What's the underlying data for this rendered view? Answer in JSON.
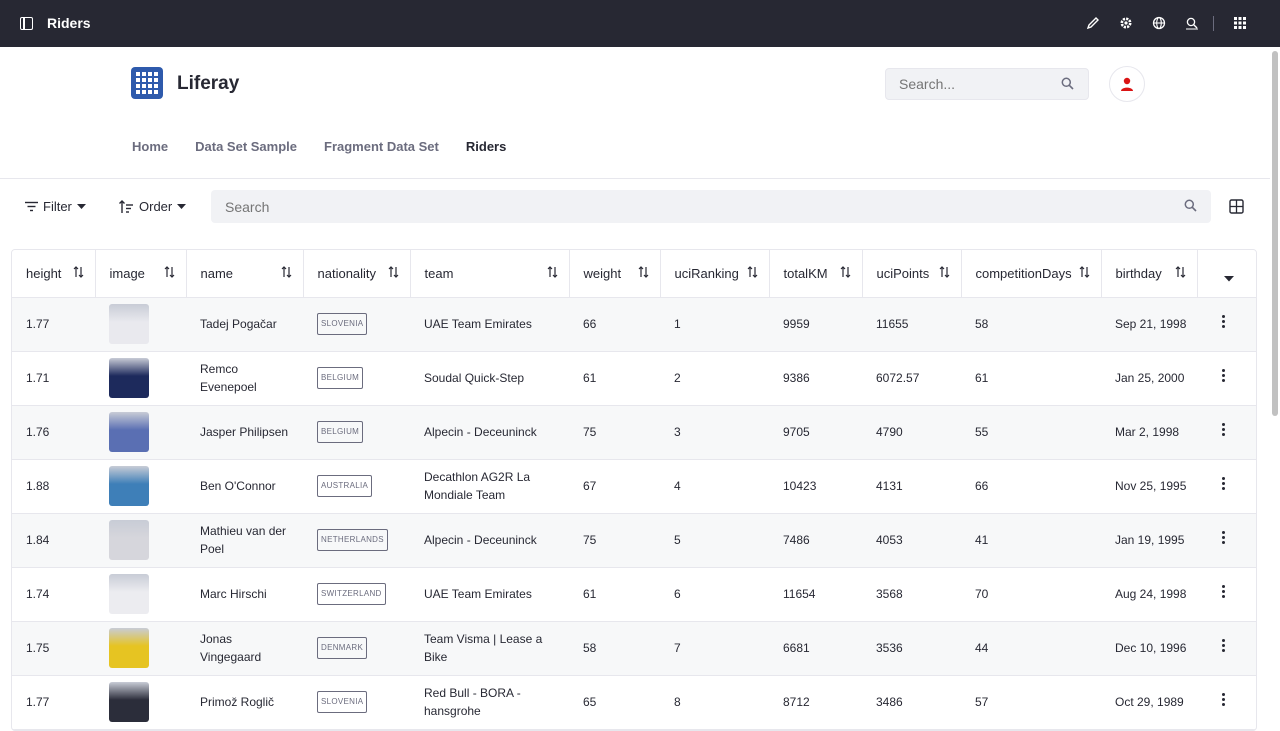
{
  "topbar": {
    "title": "Riders",
    "icons": [
      "sidebar-toggle-icon",
      "pencil-icon",
      "gear-icon",
      "globe-icon",
      "search-document-icon",
      "apps-grid-icon"
    ]
  },
  "header": {
    "brand": "Liferay",
    "search_placeholder": "Search...",
    "user_icon": "user-icon"
  },
  "nav": {
    "items": [
      {
        "label": "Home"
      },
      {
        "label": "Data Set Sample"
      },
      {
        "label": "Fragment Data Set"
      },
      {
        "label": "Riders"
      }
    ],
    "active": "Riders"
  },
  "toolbar": {
    "filter_label": "Filter",
    "order_label": "Order",
    "search_placeholder": "Search"
  },
  "table": {
    "columns": [
      "height",
      "image",
      "name",
      "nationality",
      "team",
      "weight",
      "uciRanking",
      "totalKM",
      "uciPoints",
      "competitionDays",
      "birthday"
    ],
    "rows": [
      {
        "height": "1.77",
        "image_color": "#e9e9ee",
        "name": "Tadej Pogačar",
        "nationality": "SLOVENIA",
        "team": "UAE Team Emirates",
        "weight": "66",
        "uciRanking": "1",
        "totalKM": "9959",
        "uciPoints": "11655",
        "competitionDays": "58",
        "birthday": "Sep 21, 1998"
      },
      {
        "height": "1.71",
        "image_color": "#1d2a5c",
        "name": "Remco Evenepoel",
        "nationality": "BELGIUM",
        "team": "Soudal Quick-Step",
        "weight": "61",
        "uciRanking": "2",
        "totalKM": "9386",
        "uciPoints": "6072.57",
        "competitionDays": "61",
        "birthday": "Jan 25, 2000"
      },
      {
        "height": "1.76",
        "image_color": "#5a6fb3",
        "name": "Jasper Philipsen",
        "nationality": "BELGIUM",
        "team": "Alpecin - Deceuninck",
        "weight": "75",
        "uciRanking": "3",
        "totalKM": "9705",
        "uciPoints": "4790",
        "competitionDays": "55",
        "birthday": "Mar 2, 1998"
      },
      {
        "height": "1.88",
        "image_color": "#3e7fb8",
        "name": "Ben O'Connor",
        "nationality": "AUSTRALIA",
        "team": "Decathlon AG2R La Mondiale Team",
        "weight": "67",
        "uciRanking": "4",
        "totalKM": "10423",
        "uciPoints": "4131",
        "competitionDays": "66",
        "birthday": "Nov 25, 1995"
      },
      {
        "height": "1.84",
        "image_color": "#d6d6dc",
        "name": "Mathieu van der Poel",
        "nationality": "NETHERLANDS",
        "team": "Alpecin - Deceuninck",
        "weight": "75",
        "uciRanking": "5",
        "totalKM": "7486",
        "uciPoints": "4053",
        "competitionDays": "41",
        "birthday": "Jan 19, 1995"
      },
      {
        "height": "1.74",
        "image_color": "#ececf0",
        "name": "Marc Hirschi",
        "nationality": "SWITZERLAND",
        "team": "UAE Team Emirates",
        "weight": "61",
        "uciRanking": "6",
        "totalKM": "11654",
        "uciPoints": "3568",
        "competitionDays": "70",
        "birthday": "Aug 24, 1998"
      },
      {
        "height": "1.75",
        "image_color": "#e6c422",
        "name": "Jonas Vingegaard",
        "nationality": "DENMARK",
        "team": "Team Visma | Lease a Bike",
        "weight": "58",
        "uciRanking": "7",
        "totalKM": "6681",
        "uciPoints": "3536",
        "competitionDays": "44",
        "birthday": "Dec 10, 1996"
      },
      {
        "height": "1.77",
        "image_color": "#2b2d3a",
        "name": "Primož Roglič",
        "nationality": "SLOVENIA",
        "team": "Red Bull - BORA - hansgrohe",
        "weight": "65",
        "uciRanking": "8",
        "totalKM": "8712",
        "uciPoints": "3486",
        "competitionDays": "57",
        "birthday": "Oct 29, 1989"
      }
    ]
  }
}
